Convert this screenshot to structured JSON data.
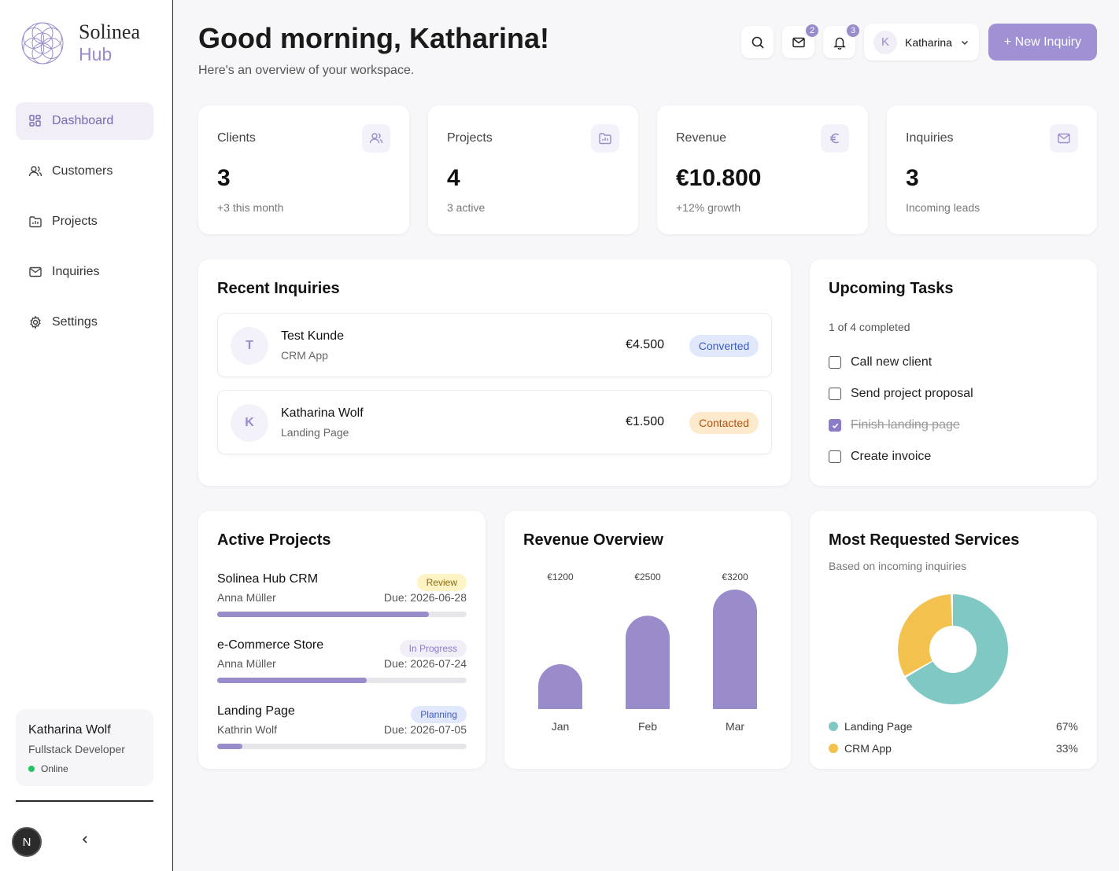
{
  "brand": {
    "line1": "Solinea",
    "line2": "Hub"
  },
  "nav": [
    {
      "label": "Dashboard",
      "icon": "dashboard-icon",
      "active": true
    },
    {
      "label": "Customers",
      "icon": "users-icon"
    },
    {
      "label": "Projects",
      "icon": "folder-icon"
    },
    {
      "label": "Inquiries",
      "icon": "mail-icon"
    },
    {
      "label": "Settings",
      "icon": "gear-icon"
    }
  ],
  "profile": {
    "name": "Katharina Wolf",
    "role": "Fullstack Developer",
    "status": "Online"
  },
  "n_badge": "N",
  "header": {
    "greeting": "Good morning, Katharina!",
    "subtitle": "Here's an overview of your workspace.",
    "mail_count": "2",
    "notif_count": "3",
    "user_initial": "K",
    "user_name": "Katharina",
    "new_button": "+ New Inquiry"
  },
  "stats": [
    {
      "label": "Clients",
      "value": "3",
      "sub": "+3 this month",
      "icon": "users-icon"
    },
    {
      "label": "Projects",
      "value": "4",
      "sub": "3 active",
      "icon": "folder-icon"
    },
    {
      "label": "Revenue",
      "value": "€10.800",
      "sub": "+12% growth",
      "icon": "euro-icon"
    },
    {
      "label": "Inquiries",
      "value": "3",
      "sub": "Incoming leads",
      "icon": "mail-icon"
    }
  ],
  "recent_inquiries": {
    "title": "Recent Inquiries",
    "items": [
      {
        "initial": "T",
        "name": "Test Kunde",
        "service": "CRM App",
        "amount": "€4.500",
        "status": "Converted"
      },
      {
        "initial": "K",
        "name": "Katharina Wolf",
        "service": "Landing Page",
        "amount": "€1.500",
        "status": "Contacted"
      }
    ]
  },
  "tasks": {
    "title": "Upcoming Tasks",
    "meta": "1 of 4 completed",
    "items": [
      {
        "label": "Call new client",
        "done": false
      },
      {
        "label": "Send project proposal",
        "done": false
      },
      {
        "label": "Finish landing page",
        "done": true
      },
      {
        "label": "Create invoice",
        "done": false
      }
    ]
  },
  "projects": {
    "title": "Active Projects",
    "items": [
      {
        "name": "Solinea Hub CRM",
        "owner": "Anna Müller",
        "due": "Due: 2026-06-28",
        "status": "Review",
        "progress": 0.85
      },
      {
        "name": "e-Commerce Store",
        "owner": "Anna Müller",
        "due": "Due: 2026-07-24",
        "status": "In Progress",
        "progress": 0.6
      },
      {
        "name": "Landing Page",
        "owner": "Kathrin Wolf",
        "due": "Due: 2026-07-05",
        "status": "Planning",
        "progress": 0.1
      }
    ]
  },
  "chart_data": [
    {
      "type": "bar",
      "title": "Revenue Overview",
      "categories": [
        "Jan",
        "Feb",
        "Mar"
      ],
      "values": [
        1200,
        2500,
        3200
      ],
      "value_labels": [
        "€1200",
        "€2500",
        "€3200"
      ],
      "color": "#9a8bcb"
    },
    {
      "type": "pie",
      "title": "Most Requested Services",
      "subtitle": "Based on incoming inquiries",
      "slices": [
        {
          "label": "Landing Page",
          "value": 67,
          "display": "67%",
          "color": "#7fc8c4"
        },
        {
          "label": "CRM App",
          "value": 33,
          "display": "33%",
          "color": "#f2c14e"
        }
      ]
    }
  ],
  "colors": {
    "accent": "#9a8bcb",
    "button": "#a090d4",
    "online": "#22c55e"
  }
}
